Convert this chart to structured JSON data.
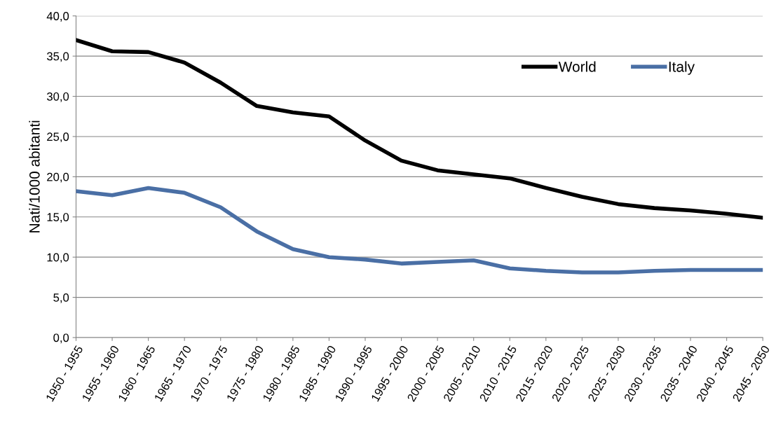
{
  "chart_data": {
    "type": "line",
    "ylabel": "Nati/1000 abitanti",
    "categories": [
      "1950 - 1955",
      "1955 - 1960",
      "1960 - 1965",
      "1965 - 1970",
      "1970 - 1975",
      "1975 - 1980",
      "1980 - 1985",
      "1985 - 1990",
      "1990 - 1995",
      "1995 - 2000",
      "2000 - 2005",
      "2005 - 2010",
      "2010 - 2015",
      "2015 - 2020",
      "2020 - 2025",
      "2025 - 2030",
      "2030 - 2035",
      "2035 - 2040",
      "2040 - 2045",
      "2045 - 2050"
    ],
    "series": [
      {
        "name": "World",
        "color": "#000000",
        "values": [
          37.0,
          35.6,
          35.5,
          34.2,
          31.7,
          28.8,
          28.0,
          27.5,
          24.5,
          22.0,
          20.8,
          20.3,
          19.8,
          18.6,
          17.5,
          16.6,
          16.1,
          15.8,
          15.4,
          14.9
        ]
      },
      {
        "name": "Italy",
        "color": "#4a6fa5",
        "values": [
          18.2,
          17.7,
          18.6,
          18.0,
          16.2,
          13.2,
          11.0,
          10.0,
          9.7,
          9.2,
          9.4,
          9.6,
          8.6,
          8.3,
          8.1,
          8.1,
          8.3,
          8.4,
          8.4,
          8.4
        ]
      }
    ],
    "ylim": [
      0,
      40
    ],
    "yticks": [
      {
        "value": 0,
        "label": "0,0"
      },
      {
        "value": 5,
        "label": "5,0"
      },
      {
        "value": 10,
        "label": "10,0"
      },
      {
        "value": 15,
        "label": "15,0"
      },
      {
        "value": 20,
        "label": "20,0"
      },
      {
        "value": 25,
        "label": "25,0"
      },
      {
        "value": 30,
        "label": "30,0"
      },
      {
        "value": 35,
        "label": "35,0"
      },
      {
        "value": 40,
        "label": "40,0"
      }
    ],
    "grid": "y",
    "legend": "top right",
    "line_style": "solid",
    "marker": "none"
  }
}
